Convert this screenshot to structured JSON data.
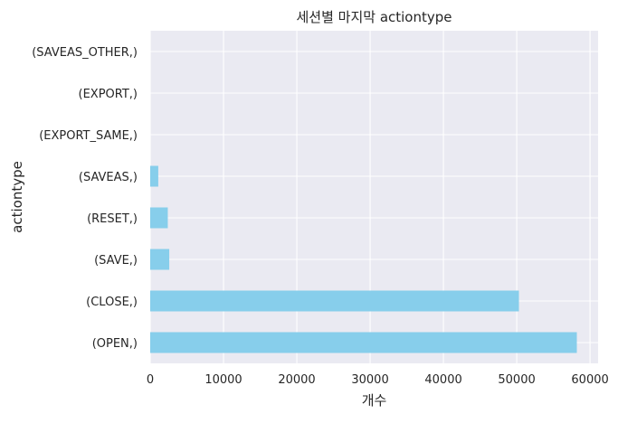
{
  "chart_data": {
    "type": "bar",
    "orientation": "horizontal",
    "title": "세션별 마지막 actiontype",
    "xlabel": "개수",
    "ylabel": "actiontype",
    "categories": [
      "(OPEN,)",
      "(CLOSE,)",
      "(SAVE,)",
      "(RESET,)",
      "(SAVEAS,)",
      "(EXPORT_SAME,)",
      "(EXPORT,)",
      "(SAVEAS_OTHER,)"
    ],
    "values": [
      58200,
      50300,
      2600,
      2400,
      1100,
      0,
      0,
      0
    ],
    "xlim": [
      0,
      61100
    ],
    "xticks": [
      0,
      10000,
      20000,
      30000,
      40000,
      50000,
      60000
    ],
    "xtick_labels": [
      "0",
      "10000",
      "20000",
      "30000",
      "40000",
      "50000",
      "60000"
    ],
    "grid": true,
    "colors": {
      "bar": "#87ceeb",
      "background": "#eaeaf2",
      "grid": "#ffffff"
    }
  }
}
